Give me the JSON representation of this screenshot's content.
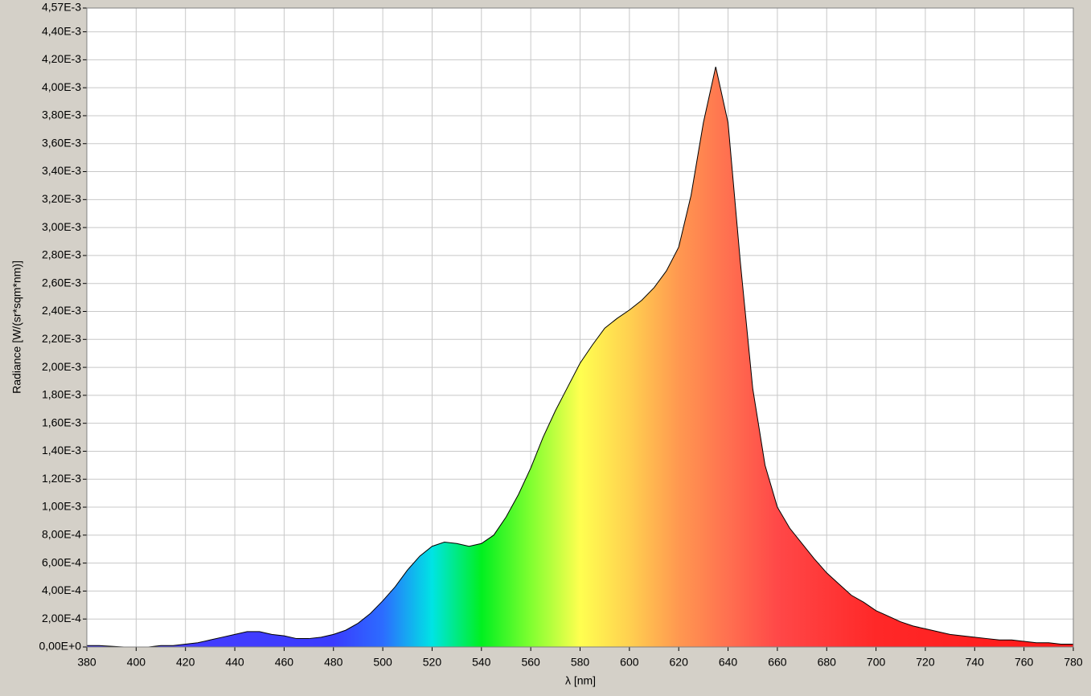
{
  "chart_data": {
    "type": "area",
    "xlabel": "λ [nm]",
    "ylabel": "Radiance [W/(sr*sqm*nm)]",
    "x": [
      380,
      385,
      390,
      395,
      400,
      405,
      410,
      415,
      420,
      425,
      430,
      435,
      440,
      445,
      450,
      455,
      460,
      465,
      470,
      475,
      480,
      485,
      490,
      495,
      500,
      505,
      510,
      515,
      520,
      525,
      530,
      535,
      540,
      545,
      550,
      555,
      560,
      565,
      570,
      575,
      580,
      585,
      590,
      595,
      600,
      605,
      610,
      615,
      620,
      625,
      630,
      635,
      640,
      645,
      650,
      655,
      660,
      665,
      670,
      675,
      680,
      685,
      690,
      695,
      700,
      705,
      710,
      715,
      720,
      725,
      730,
      735,
      740,
      745,
      750,
      755,
      760,
      765,
      770,
      775,
      780
    ],
    "values": [
      1e-05,
      1e-05,
      5e-06,
      0,
      0,
      0,
      1e-05,
      1e-05,
      2e-05,
      3e-05,
      5e-05,
      7e-05,
      9e-05,
      0.00011,
      0.00011,
      9e-05,
      8e-05,
      6e-05,
      6e-05,
      7e-05,
      9e-05,
      0.00012,
      0.00017,
      0.00024,
      0.00033,
      0.00043,
      0.00055,
      0.00065,
      0.00072,
      0.00075,
      0.00074,
      0.00072,
      0.00074,
      0.0008,
      0.00093,
      0.00109,
      0.00128,
      0.0015,
      0.00169,
      0.00186,
      0.00203,
      0.00216,
      0.00228,
      0.00235,
      0.00241,
      0.00248,
      0.00257,
      0.00269,
      0.00286,
      0.00323,
      0.00375,
      0.00415,
      0.00375,
      0.00275,
      0.00185,
      0.0013,
      0.001,
      0.00085,
      0.00074,
      0.00063,
      0.00053,
      0.00045,
      0.00037,
      0.00032,
      0.00026,
      0.00022,
      0.00018,
      0.00015,
      0.00013,
      0.00011,
      9e-05,
      8e-05,
      7e-05,
      6e-05,
      5e-05,
      5e-05,
      4e-05,
      3e-05,
      3e-05,
      2e-05,
      2e-05
    ],
    "line_color": "#000000",
    "xlim": [
      380,
      780
    ],
    "xticks": [
      380,
      400,
      420,
      440,
      460,
      480,
      500,
      520,
      540,
      560,
      580,
      600,
      620,
      640,
      660,
      680,
      700,
      720,
      740,
      760,
      780
    ],
    "ylim": [
      0,
      0.00457
    ],
    "yticks": [
      {
        "value": 0,
        "label": "0,00E+0"
      },
      {
        "value": 0.0002,
        "label": "2,00E-4"
      },
      {
        "value": 0.0004,
        "label": "4,00E-4"
      },
      {
        "value": 0.0006,
        "label": "6,00E-4"
      },
      {
        "value": 0.0008,
        "label": "8,00E-4"
      },
      {
        "value": 0.001,
        "label": "1,00E-3"
      },
      {
        "value": 0.0012,
        "label": "1,20E-3"
      },
      {
        "value": 0.0014,
        "label": "1,40E-3"
      },
      {
        "value": 0.0016,
        "label": "1,60E-3"
      },
      {
        "value": 0.0018,
        "label": "1,80E-3"
      },
      {
        "value": 0.002,
        "label": "2,00E-3"
      },
      {
        "value": 0.0022,
        "label": "2,20E-3"
      },
      {
        "value": 0.0024,
        "label": "2,40E-3"
      },
      {
        "value": 0.0026,
        "label": "2,60E-3"
      },
      {
        "value": 0.0028,
        "label": "2,80E-3"
      },
      {
        "value": 0.003,
        "label": "3,00E-3"
      },
      {
        "value": 0.0032,
        "label": "3,20E-3"
      },
      {
        "value": 0.0034,
        "label": "3,40E-3"
      },
      {
        "value": 0.0036,
        "label": "3,60E-3"
      },
      {
        "value": 0.0038,
        "label": "3,80E-3"
      },
      {
        "value": 0.004,
        "label": "4,00E-3"
      },
      {
        "value": 0.0042,
        "label": "4,20E-3"
      },
      {
        "value": 0.0044,
        "label": "4,40E-3"
      },
      {
        "value": 0.00457,
        "label": "4,57E-3"
      }
    ],
    "grid": true
  }
}
